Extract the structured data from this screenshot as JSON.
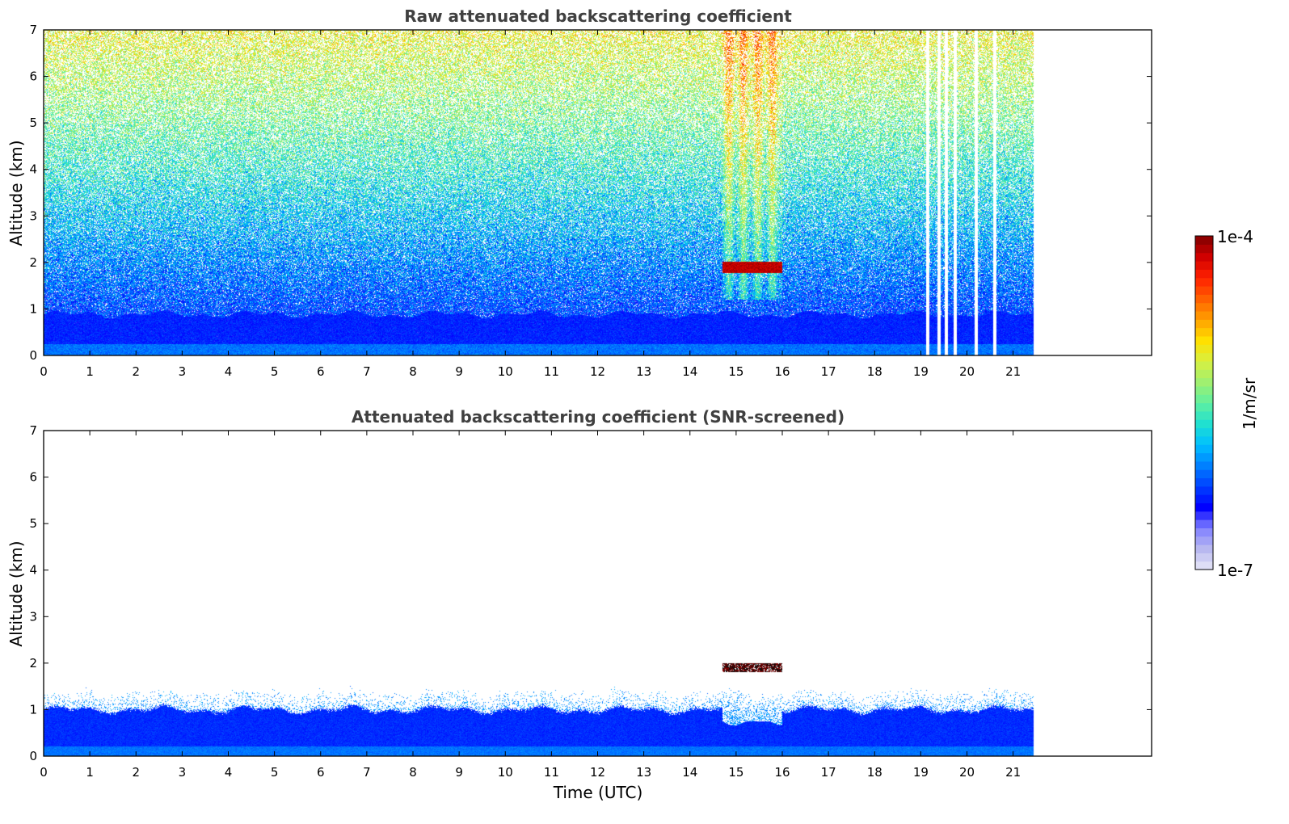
{
  "chart_data": [
    {
      "type": "heatmap",
      "title": "Raw attenuated backscattering coefficient",
      "xlabel": "",
      "ylabel": "Altitude (km)",
      "xlim": [
        0,
        24
      ],
      "ylim": [
        0,
        7
      ],
      "x_ticks": [
        "0",
        "1",
        "2",
        "3",
        "4",
        "5",
        "6",
        "7",
        "8",
        "9",
        "10",
        "11",
        "12",
        "13",
        "14",
        "15",
        "16",
        "17",
        "18",
        "19",
        "20",
        "21"
      ],
      "y_ticks": [
        "0",
        "1",
        "2",
        "3",
        "4",
        "5",
        "6",
        "7"
      ],
      "data_end_time": 21.45,
      "screened": false,
      "features": [
        {
          "type": "cloud_layer",
          "time_start": 14.7,
          "time_end": 16.0,
          "altitude": 1.9
        },
        {
          "type": "gaps",
          "times": [
            19.15,
            19.4,
            19.55,
            19.75,
            20.2,
            20.6
          ]
        }
      ]
    },
    {
      "type": "heatmap",
      "title": "Attenuated backscattering coefficient (SNR-screened)",
      "xlabel": "Time (UTC)",
      "ylabel": "Altitude (km)",
      "xlim": [
        0,
        24
      ],
      "ylim": [
        0,
        7
      ],
      "x_ticks": [
        "0",
        "1",
        "2",
        "3",
        "4",
        "5",
        "6",
        "7",
        "8",
        "9",
        "10",
        "11",
        "12",
        "13",
        "14",
        "15",
        "16",
        "17",
        "18",
        "19",
        "20",
        "21"
      ],
      "y_ticks": [
        "0",
        "1",
        "2",
        "3",
        "4",
        "5",
        "6",
        "7"
      ],
      "data_end_time": 21.45,
      "screened": true,
      "boundary_layer_top_km": 1.0,
      "features": [
        {
          "type": "cloud_layer",
          "time_start": 14.7,
          "time_end": 16.0,
          "altitude": 1.9
        }
      ]
    }
  ],
  "colorbar": {
    "min_label": "1e-7",
    "max_label": "1e-4",
    "unit_label": "1/m/sr",
    "colors": [
      "#e8e8f8",
      "#b8b8f0",
      "#8080ff",
      "#0000ff",
      "#0040ff",
      "#0080ff",
      "#00c0ff",
      "#20e0d0",
      "#60f0a0",
      "#a0f070",
      "#d8f040",
      "#ffe000",
      "#ffa000",
      "#ff6000",
      "#ff2000",
      "#d00000",
      "#800000"
    ]
  }
}
